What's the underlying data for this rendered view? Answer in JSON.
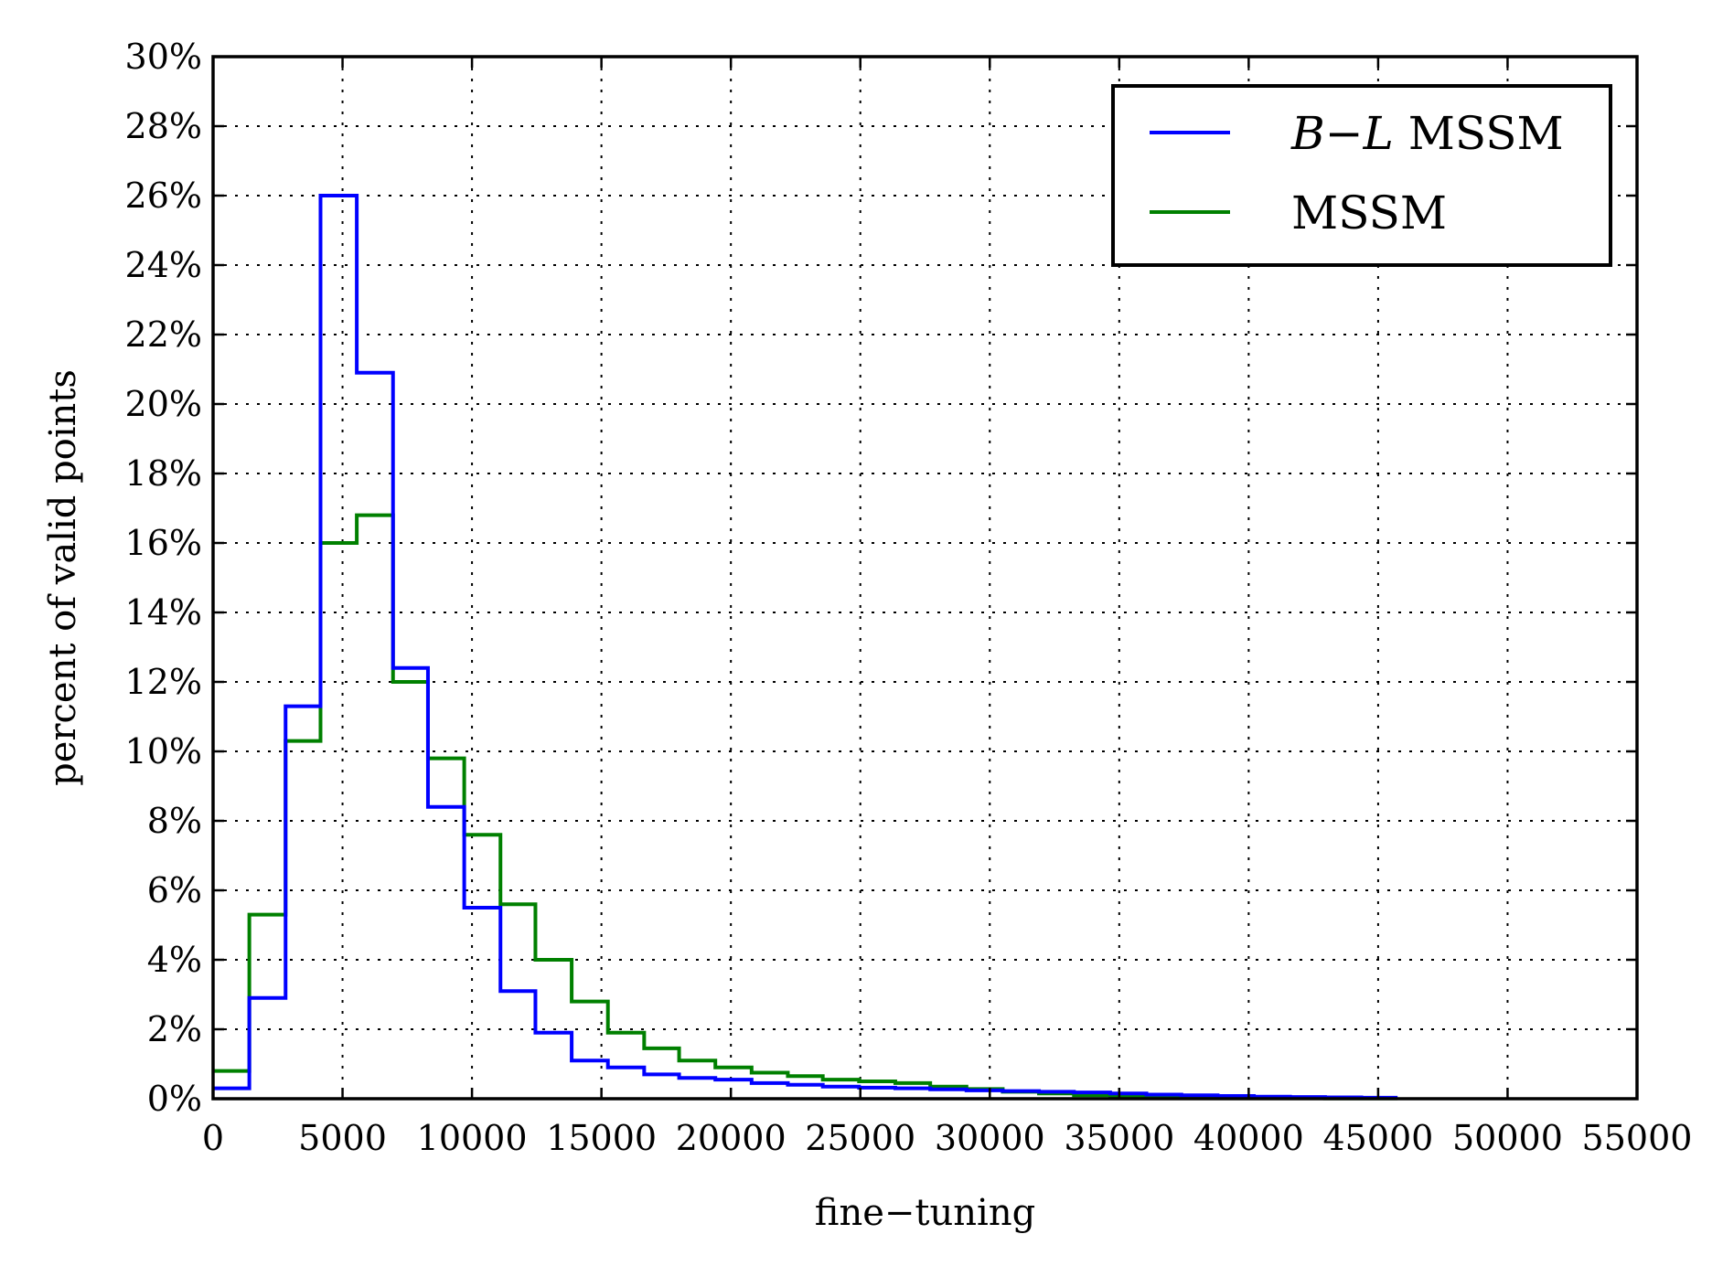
{
  "chart_data": {
    "type": "line",
    "step": "histogram",
    "xlabel": "fine−tuning",
    "ylabel": "percent of valid points",
    "xlim": [
      0,
      55000
    ],
    "ylim": [
      0,
      30
    ],
    "xticks": [
      0,
      5000,
      10000,
      15000,
      20000,
      25000,
      30000,
      35000,
      40000,
      45000,
      50000,
      55000
    ],
    "xtick_labels": [
      "0",
      "5000",
      "10000",
      "15000",
      "20000",
      "25000",
      "30000",
      "35000",
      "40000",
      "45000",
      "50000",
      "55000"
    ],
    "yticks": [
      0,
      2,
      4,
      6,
      8,
      10,
      12,
      14,
      16,
      18,
      20,
      22,
      24,
      26,
      28,
      30
    ],
    "ytick_labels": [
      "0%",
      "2%",
      "4%",
      "6%",
      "8%",
      "10%",
      "12%",
      "14%",
      "16%",
      "18%",
      "20%",
      "22%",
      "24%",
      "26%",
      "28%",
      "30%"
    ],
    "grid": true,
    "legend_position": "top-right",
    "bin_edges": [
      0,
      1400,
      2800,
      4150,
      5550,
      6950,
      8300,
      9700,
      11100,
      12450,
      13850,
      15250,
      16650,
      18000,
      19400,
      20800,
      22200,
      23550,
      24950,
      26350,
      27700,
      29100,
      30500,
      31900,
      33250,
      34650,
      36050,
      37400,
      38800,
      40200,
      41600,
      42950,
      44350,
      45750
    ],
    "series": [
      {
        "name": "B−L MSSM",
        "color": "#0000ff",
        "values": [
          0.3,
          2.9,
          11.3,
          26.0,
          20.9,
          12.4,
          8.4,
          5.5,
          3.1,
          1.9,
          1.1,
          0.9,
          0.7,
          0.6,
          0.55,
          0.45,
          0.4,
          0.35,
          0.32,
          0.3,
          0.27,
          0.24,
          0.22,
          0.2,
          0.18,
          0.15,
          0.12,
          0.1,
          0.08,
          0.06,
          0.05,
          0.04,
          0.03
        ]
      },
      {
        "name": "MSSM",
        "color": "#008000",
        "values": [
          0.8,
          5.3,
          10.3,
          16.0,
          16.8,
          12.0,
          9.8,
          7.6,
          5.6,
          4.0,
          2.8,
          1.9,
          1.45,
          1.1,
          0.9,
          0.75,
          0.65,
          0.55,
          0.5,
          0.45,
          0.35,
          0.28,
          0.2,
          0.15,
          0.1,
          0.08,
          0.05,
          0.04,
          0.03,
          0.02,
          0.02,
          0.01,
          0.01
        ]
      }
    ]
  },
  "legend": {
    "entries": [
      {
        "label_main": "B−L",
        "label_rest": " MSSM",
        "color": "#0000ff"
      },
      {
        "label_main": "MSSM",
        "label_rest": "",
        "color": "#008000"
      }
    ]
  }
}
